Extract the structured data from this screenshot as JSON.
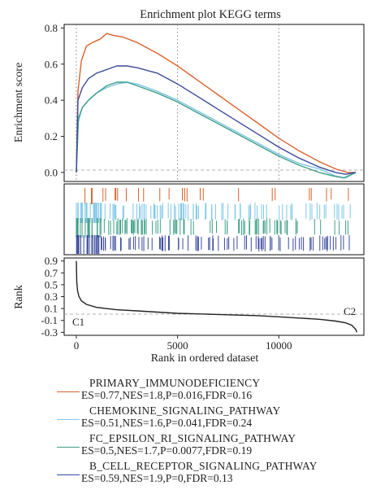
{
  "colors": {
    "primary_immunodeficiency": "#d9622e",
    "chemokine_signaling": "#7fc6e8",
    "fc_epsilon_ri": "#3f9f86",
    "b_cell_receptor": "#3a4a9c",
    "rank_line": "#222222"
  },
  "chart_data": [
    {
      "type": "line",
      "title": "Enrichment plot KEGG terms",
      "ylabel": "Enrichment score",
      "xlim": [
        -600,
        14200
      ],
      "ylim": [
        -0.05,
        0.82
      ],
      "yticks": [
        "0.0",
        "0.2",
        "0.4",
        "0.6",
        "0.8"
      ],
      "grid": "dotted vertical",
      "series": [
        {
          "name": "PRIMARY_IMMUNODEFICIENCY",
          "color_key": "primary_immunodeficiency",
          "x": [
            0,
            80,
            250,
            500,
            800,
            1200,
            1500,
            1800,
            2300,
            3000,
            4000,
            5000,
            6000,
            7000,
            8000,
            9000,
            10000,
            11000,
            12000,
            12800,
            13400,
            13800
          ],
          "y": [
            0.0,
            0.45,
            0.62,
            0.7,
            0.72,
            0.74,
            0.77,
            0.76,
            0.75,
            0.72,
            0.66,
            0.59,
            0.51,
            0.43,
            0.35,
            0.27,
            0.19,
            0.12,
            0.06,
            0.02,
            0.0,
            0.0
          ]
        },
        {
          "name": "CHEMOKINE_SIGNALING_PATHWAY",
          "color_key": "chemokine_signaling",
          "x": [
            0,
            100,
            300,
            600,
            1000,
            1500,
            2000,
            2500,
            3000,
            4000,
            5000,
            6000,
            7000,
            8000,
            9000,
            10000,
            11000,
            12000,
            12800,
            13300,
            13800
          ],
          "y": [
            0.0,
            0.28,
            0.36,
            0.4,
            0.44,
            0.47,
            0.49,
            0.5,
            0.49,
            0.45,
            0.4,
            0.34,
            0.28,
            0.22,
            0.16,
            0.1,
            0.05,
            0.02,
            -0.02,
            -0.03,
            0.0
          ]
        },
        {
          "name": "FC_EPSILON_RI_SIGNALING_PATHWAY",
          "color_key": "fc_epsilon_ri",
          "x": [
            0,
            100,
            300,
            600,
            1000,
            1500,
            2000,
            2500,
            3000,
            4000,
            5000,
            6000,
            7000,
            8000,
            9000,
            10000,
            11000,
            12000,
            12700,
            13200,
            13800
          ],
          "y": [
            0.0,
            0.3,
            0.36,
            0.4,
            0.44,
            0.48,
            0.5,
            0.5,
            0.48,
            0.44,
            0.39,
            0.33,
            0.27,
            0.21,
            0.15,
            0.09,
            0.04,
            0.0,
            -0.02,
            -0.03,
            0.0
          ]
        },
        {
          "name": "B_CELL_RECEPTOR_SIGNALING_PATHWAY",
          "color_key": "b_cell_receptor",
          "x": [
            0,
            80,
            300,
            600,
            1000,
            1500,
            2000,
            2500,
            3000,
            4000,
            5000,
            6000,
            7000,
            8000,
            9000,
            10000,
            11000,
            12000,
            12800,
            13300,
            13800
          ],
          "y": [
            0.0,
            0.4,
            0.47,
            0.52,
            0.55,
            0.57,
            0.59,
            0.59,
            0.58,
            0.55,
            0.49,
            0.42,
            0.35,
            0.28,
            0.21,
            0.14,
            0.08,
            0.03,
            0.0,
            -0.01,
            0.0
          ]
        }
      ]
    },
    {
      "type": "barcode",
      "description_of_marks": "gene hit positions per pathway",
      "series_order": [
        "primary_immunodeficiency",
        "chemokine_signaling",
        "fc_epsilon_ri",
        "b_cell_receptor"
      ],
      "xlim": [
        -600,
        14200
      ]
    },
    {
      "type": "line",
      "ylabel": "Rank",
      "xlabel": "Rank in ordered dataset",
      "xlim": [
        -600,
        14200
      ],
      "ylim": [
        -0.35,
        0.95
      ],
      "xticks": [
        "0",
        "5000",
        "10000"
      ],
      "yticks": [
        "0.9",
        "0.7",
        "0.5",
        "0.3",
        "0.1",
        "-0.1",
        "-0.3"
      ],
      "annotations": [
        "C1",
        "C2"
      ],
      "x": [
        0,
        20,
        60,
        120,
        250,
        500,
        1000,
        2000,
        3000,
        4000,
        5000,
        6000,
        7000,
        8000,
        9000,
        10000,
        11000,
        12000,
        12800,
        13300,
        13600,
        13800,
        13850
      ],
      "y": [
        0.9,
        0.55,
        0.4,
        0.31,
        0.23,
        0.17,
        0.12,
        0.08,
        0.06,
        0.04,
        0.02,
        0.01,
        0.0,
        -0.01,
        -0.02,
        -0.04,
        -0.06,
        -0.08,
        -0.11,
        -0.14,
        -0.18,
        -0.25,
        -0.3
      ]
    }
  ],
  "legend": [
    {
      "name": "PRIMARY_IMMUNODEFICIENCY",
      "stats": "ES=0.77,NES=1.8,P=0.016,FDR=0.16",
      "color_key": "primary_immunodeficiency"
    },
    {
      "name": "CHEMOKINE_SIGNALING_PATHWAY",
      "stats": "ES=0.51,NES=1.6,P=0.041,FDR=0.24",
      "color_key": "chemokine_signaling"
    },
    {
      "name": "FC_EPSILON_RI_SIGNALING_PATHWAY",
      "stats": "ES=0.5,NES=1.7,P=0.0077,FDR=0.19",
      "color_key": "fc_epsilon_ri"
    },
    {
      "name": "B_CELL_RECEPTOR_SIGNALING_PATHWAY",
      "stats": "ES=0.59,NES=1.9,P=0,FDR=0.13",
      "color_key": "b_cell_receptor"
    }
  ]
}
